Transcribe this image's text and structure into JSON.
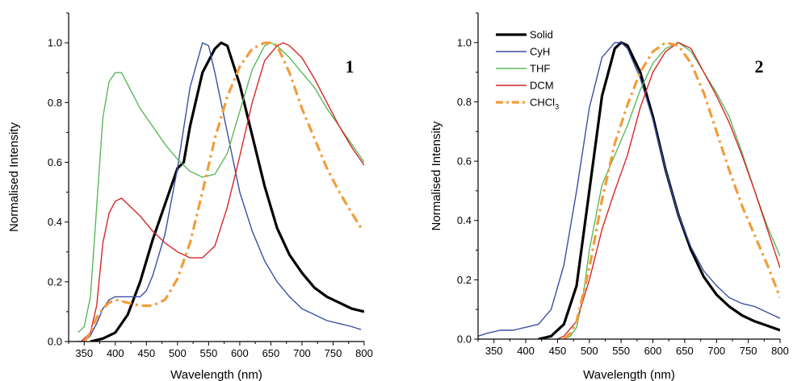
{
  "chart_data": [
    {
      "type": "line",
      "panel_label": "1",
      "xlabel": "Wavelength (nm)",
      "ylabel": "Normalised Intensity",
      "xlim": [
        325,
        800
      ],
      "ylim": [
        0,
        1.1
      ],
      "xticks": [
        350,
        400,
        450,
        500,
        550,
        600,
        650,
        700,
        750,
        800
      ],
      "yticks": [
        0.0,
        0.2,
        0.4,
        0.6,
        0.8,
        1.0
      ],
      "xtick_labels": [
        "350",
        "400",
        "450",
        "500",
        "550",
        "600",
        "650",
        "700",
        "750",
        "800"
      ],
      "ytick_labels": [
        "0.0",
        "0.2",
        "0.4",
        "0.6",
        "0.8",
        "1.0"
      ],
      "legend": "none",
      "grid": false,
      "series": [
        {
          "key": "solid",
          "color": "#000000",
          "style": "solid-thick",
          "x": [
            360,
            380,
            400,
            420,
            440,
            460,
            480,
            500,
            510,
            520,
            540,
            560,
            570,
            580,
            600,
            620,
            640,
            660,
            680,
            700,
            720,
            740,
            760,
            780,
            800
          ],
          "y": [
            0.0,
            0.01,
            0.03,
            0.09,
            0.2,
            0.34,
            0.46,
            0.58,
            0.6,
            0.72,
            0.9,
            0.98,
            1.0,
            0.99,
            0.86,
            0.69,
            0.52,
            0.38,
            0.29,
            0.23,
            0.18,
            0.15,
            0.13,
            0.11,
            0.1
          ]
        },
        {
          "key": "cyh",
          "color": "#3a4fa3",
          "style": "solid",
          "x": [
            340,
            350,
            360,
            370,
            380,
            390,
            400,
            420,
            440,
            450,
            460,
            480,
            500,
            520,
            540,
            550,
            560,
            580,
            600,
            620,
            640,
            660,
            680,
            700,
            720,
            740,
            760,
            780,
            795
          ],
          "y": [
            0.0,
            0.0,
            0.02,
            0.06,
            0.11,
            0.14,
            0.15,
            0.15,
            0.15,
            0.17,
            0.22,
            0.36,
            0.58,
            0.85,
            1.0,
            0.99,
            0.9,
            0.7,
            0.5,
            0.37,
            0.27,
            0.2,
            0.15,
            0.11,
            0.09,
            0.07,
            0.06,
            0.05,
            0.04
          ]
        },
        {
          "key": "thf",
          "color": "#5cb85c",
          "style": "solid",
          "x": [
            340,
            350,
            360,
            370,
            380,
            390,
            400,
            410,
            420,
            440,
            460,
            480,
            500,
            520,
            540,
            560,
            580,
            600,
            620,
            640,
            650,
            660,
            680,
            700,
            720,
            740,
            760,
            780,
            800
          ],
          "y": [
            0.03,
            0.05,
            0.15,
            0.45,
            0.75,
            0.87,
            0.9,
            0.9,
            0.86,
            0.78,
            0.72,
            0.66,
            0.61,
            0.57,
            0.55,
            0.56,
            0.63,
            0.77,
            0.91,
            0.99,
            1.0,
            0.99,
            0.95,
            0.9,
            0.85,
            0.78,
            0.72,
            0.66,
            0.6
          ]
        },
        {
          "key": "dcm",
          "color": "#d62728",
          "style": "solid",
          "x": [
            345,
            360,
            370,
            380,
            390,
            400,
            410,
            420,
            440,
            460,
            480,
            500,
            520,
            540,
            560,
            580,
            600,
            620,
            640,
            660,
            670,
            680,
            700,
            720,
            740,
            760,
            780,
            800
          ],
          "y": [
            0.0,
            0.03,
            0.12,
            0.33,
            0.43,
            0.47,
            0.48,
            0.46,
            0.42,
            0.37,
            0.33,
            0.3,
            0.28,
            0.28,
            0.32,
            0.45,
            0.62,
            0.8,
            0.94,
            0.99,
            1.0,
            0.99,
            0.95,
            0.88,
            0.8,
            0.72,
            0.65,
            0.59
          ]
        },
        {
          "key": "chcl3",
          "color": "#f39c3a",
          "style": "dash-dot-thick",
          "x": [
            350,
            360,
            370,
            380,
            390,
            400,
            420,
            440,
            460,
            480,
            500,
            520,
            540,
            560,
            580,
            600,
            620,
            640,
            650,
            660,
            680,
            700,
            720,
            740,
            760,
            780,
            795
          ],
          "y": [
            0.0,
            0.03,
            0.08,
            0.11,
            0.13,
            0.14,
            0.13,
            0.12,
            0.12,
            0.14,
            0.21,
            0.33,
            0.5,
            0.68,
            0.82,
            0.92,
            0.98,
            1.0,
            1.0,
            0.99,
            0.9,
            0.78,
            0.68,
            0.58,
            0.5,
            0.43,
            0.38
          ]
        }
      ]
    },
    {
      "type": "line",
      "panel_label": "2",
      "xlabel": "Wavelength (nm)",
      "ylabel": "Normalised Intensity",
      "xlim": [
        325,
        800
      ],
      "ylim": [
        0,
        1.1
      ],
      "xticks": [
        350,
        400,
        450,
        500,
        550,
        600,
        650,
        700,
        750,
        800
      ],
      "yticks": [
        0.0,
        0.2,
        0.4,
        0.6,
        0.8,
        1.0
      ],
      "xtick_labels": [
        "350",
        "400",
        "450",
        "500",
        "550",
        "600",
        "650",
        "700",
        "750",
        "800"
      ],
      "ytick_labels": [
        "0.0",
        "0.2",
        "0.4",
        "0.6",
        "0.8",
        "1.0"
      ],
      "legend": "top-left",
      "grid": false,
      "series": [
        {
          "key": "solid",
          "name": "Solid",
          "color": "#000000",
          "style": "solid-thick",
          "x": [
            420,
            440,
            460,
            480,
            500,
            520,
            540,
            550,
            560,
            580,
            600,
            620,
            640,
            660,
            680,
            700,
            720,
            740,
            760,
            780,
            800
          ],
          "y": [
            0.0,
            0.01,
            0.05,
            0.18,
            0.5,
            0.82,
            0.98,
            1.0,
            0.99,
            0.9,
            0.75,
            0.57,
            0.42,
            0.3,
            0.21,
            0.15,
            0.11,
            0.08,
            0.06,
            0.045,
            0.03
          ]
        },
        {
          "key": "cyh",
          "name": "CyH",
          "color": "#3a4fa3",
          "style": "solid",
          "x": [
            325,
            340,
            360,
            380,
            400,
            420,
            440,
            460,
            480,
            500,
            520,
            540,
            550,
            560,
            580,
            600,
            620,
            640,
            660,
            680,
            700,
            720,
            740,
            760,
            780,
            800
          ],
          "y": [
            0.01,
            0.02,
            0.03,
            0.03,
            0.04,
            0.05,
            0.1,
            0.25,
            0.5,
            0.78,
            0.95,
            1.0,
            1.0,
            0.98,
            0.88,
            0.74,
            0.57,
            0.42,
            0.31,
            0.23,
            0.18,
            0.14,
            0.12,
            0.11,
            0.09,
            0.07
          ]
        },
        {
          "key": "thf",
          "name": "THF",
          "color": "#5cb85c",
          "style": "solid",
          "x": [
            460,
            470,
            480,
            490,
            500,
            520,
            540,
            560,
            580,
            600,
            620,
            640,
            660,
            680,
            700,
            720,
            740,
            760,
            780,
            800
          ],
          "y": [
            0.0,
            0.01,
            0.04,
            0.14,
            0.3,
            0.52,
            0.62,
            0.72,
            0.84,
            0.93,
            0.98,
            1.0,
            0.97,
            0.9,
            0.83,
            0.75,
            0.63,
            0.5,
            0.38,
            0.28
          ]
        },
        {
          "key": "dcm",
          "name": "DCM",
          "color": "#d62728",
          "style": "solid",
          "x": [
            450,
            460,
            480,
            500,
            520,
            540,
            560,
            580,
            600,
            620,
            640,
            660,
            680,
            700,
            720,
            740,
            760,
            780,
            800
          ],
          "y": [
            0.0,
            0.01,
            0.06,
            0.2,
            0.37,
            0.5,
            0.62,
            0.78,
            0.9,
            0.97,
            1.0,
            0.98,
            0.9,
            0.82,
            0.73,
            0.62,
            0.5,
            0.37,
            0.24
          ]
        },
        {
          "key": "chcl3",
          "name": "CHCl",
          "name_subscript": "3",
          "color": "#f39c3a",
          "style": "dash-dot-thick",
          "x": [
            460,
            470,
            480,
            500,
            520,
            540,
            560,
            580,
            600,
            620,
            640,
            660,
            680,
            700,
            720,
            740,
            760,
            780,
            800
          ],
          "y": [
            0.0,
            0.02,
            0.06,
            0.24,
            0.47,
            0.66,
            0.79,
            0.9,
            0.97,
            1.0,
            0.99,
            0.93,
            0.83,
            0.7,
            0.57,
            0.45,
            0.35,
            0.25,
            0.14
          ]
        }
      ]
    }
  ]
}
